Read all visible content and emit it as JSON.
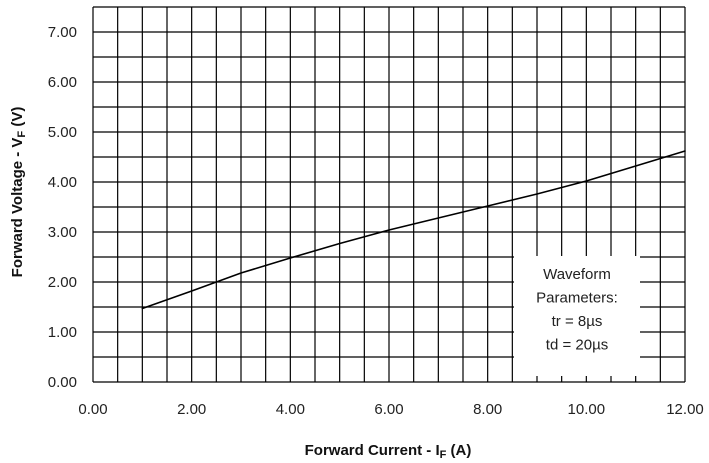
{
  "chart_data": {
    "type": "line",
    "xlabel": "Forward Current - I",
    "xlabel_sub": "F",
    "xlabel_suffix": " (A)",
    "ylabel": "Forward Voltage - V",
    "ylabel_sub": "F",
    "ylabel_suffix": " (V)",
    "xlim": [
      0,
      12
    ],
    "ylim": [
      0,
      7.5
    ],
    "x_ticks": [
      0,
      2,
      4,
      6,
      8,
      10,
      12
    ],
    "x_tick_labels": [
      "0.00",
      "2.00",
      "4.00",
      "6.00",
      "8.00",
      "10.00",
      "12.00"
    ],
    "y_ticks": [
      0,
      1,
      2,
      3,
      4,
      5,
      6,
      7
    ],
    "y_tick_labels": [
      "0.00",
      "1.00",
      "2.00",
      "3.00",
      "4.00",
      "5.00",
      "6.00",
      "7.00"
    ],
    "grid": true,
    "x_minor_step": 0.5,
    "y_minor_step": 0.5,
    "series": [
      {
        "x": [
          1.0,
          2.0,
          3.0,
          4.0,
          5.0,
          6.0,
          7.0,
          8.0,
          9.0,
          10.0,
          11.0,
          12.0
        ],
        "y": [
          1.47,
          1.82,
          2.18,
          2.48,
          2.77,
          3.04,
          3.28,
          3.52,
          3.76,
          4.02,
          4.32,
          4.62
        ]
      }
    ],
    "annotation": {
      "lines": [
        "Waveform",
        "Parameters:",
        "tr = 8µs",
        "td = 20µs"
      ],
      "position": "lower-right"
    }
  }
}
